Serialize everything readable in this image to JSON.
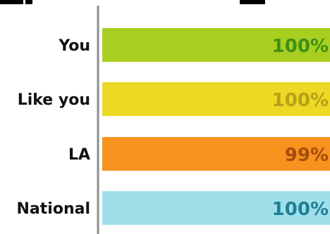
{
  "chart_data": {
    "type": "bar",
    "orientation": "horizontal",
    "title": "",
    "xlabel": "",
    "ylabel": "",
    "categories": [
      "You",
      "Like you",
      "LA",
      "National"
    ],
    "values": [
      100,
      100,
      99,
      100
    ],
    "value_labels": [
      "100%",
      "100%",
      "99%",
      "100%"
    ],
    "colors": {
      "bars": [
        "#a8cf1f",
        "#ecd924",
        "#f7921e",
        "#9edfea"
      ],
      "labels": [
        "#3f8f17",
        "#b8a017",
        "#a44e0c",
        "#1f7f95"
      ],
      "axis": "#8c8c8c"
    },
    "xlim": [
      0,
      100
    ],
    "grid": false,
    "legend": "none"
  }
}
